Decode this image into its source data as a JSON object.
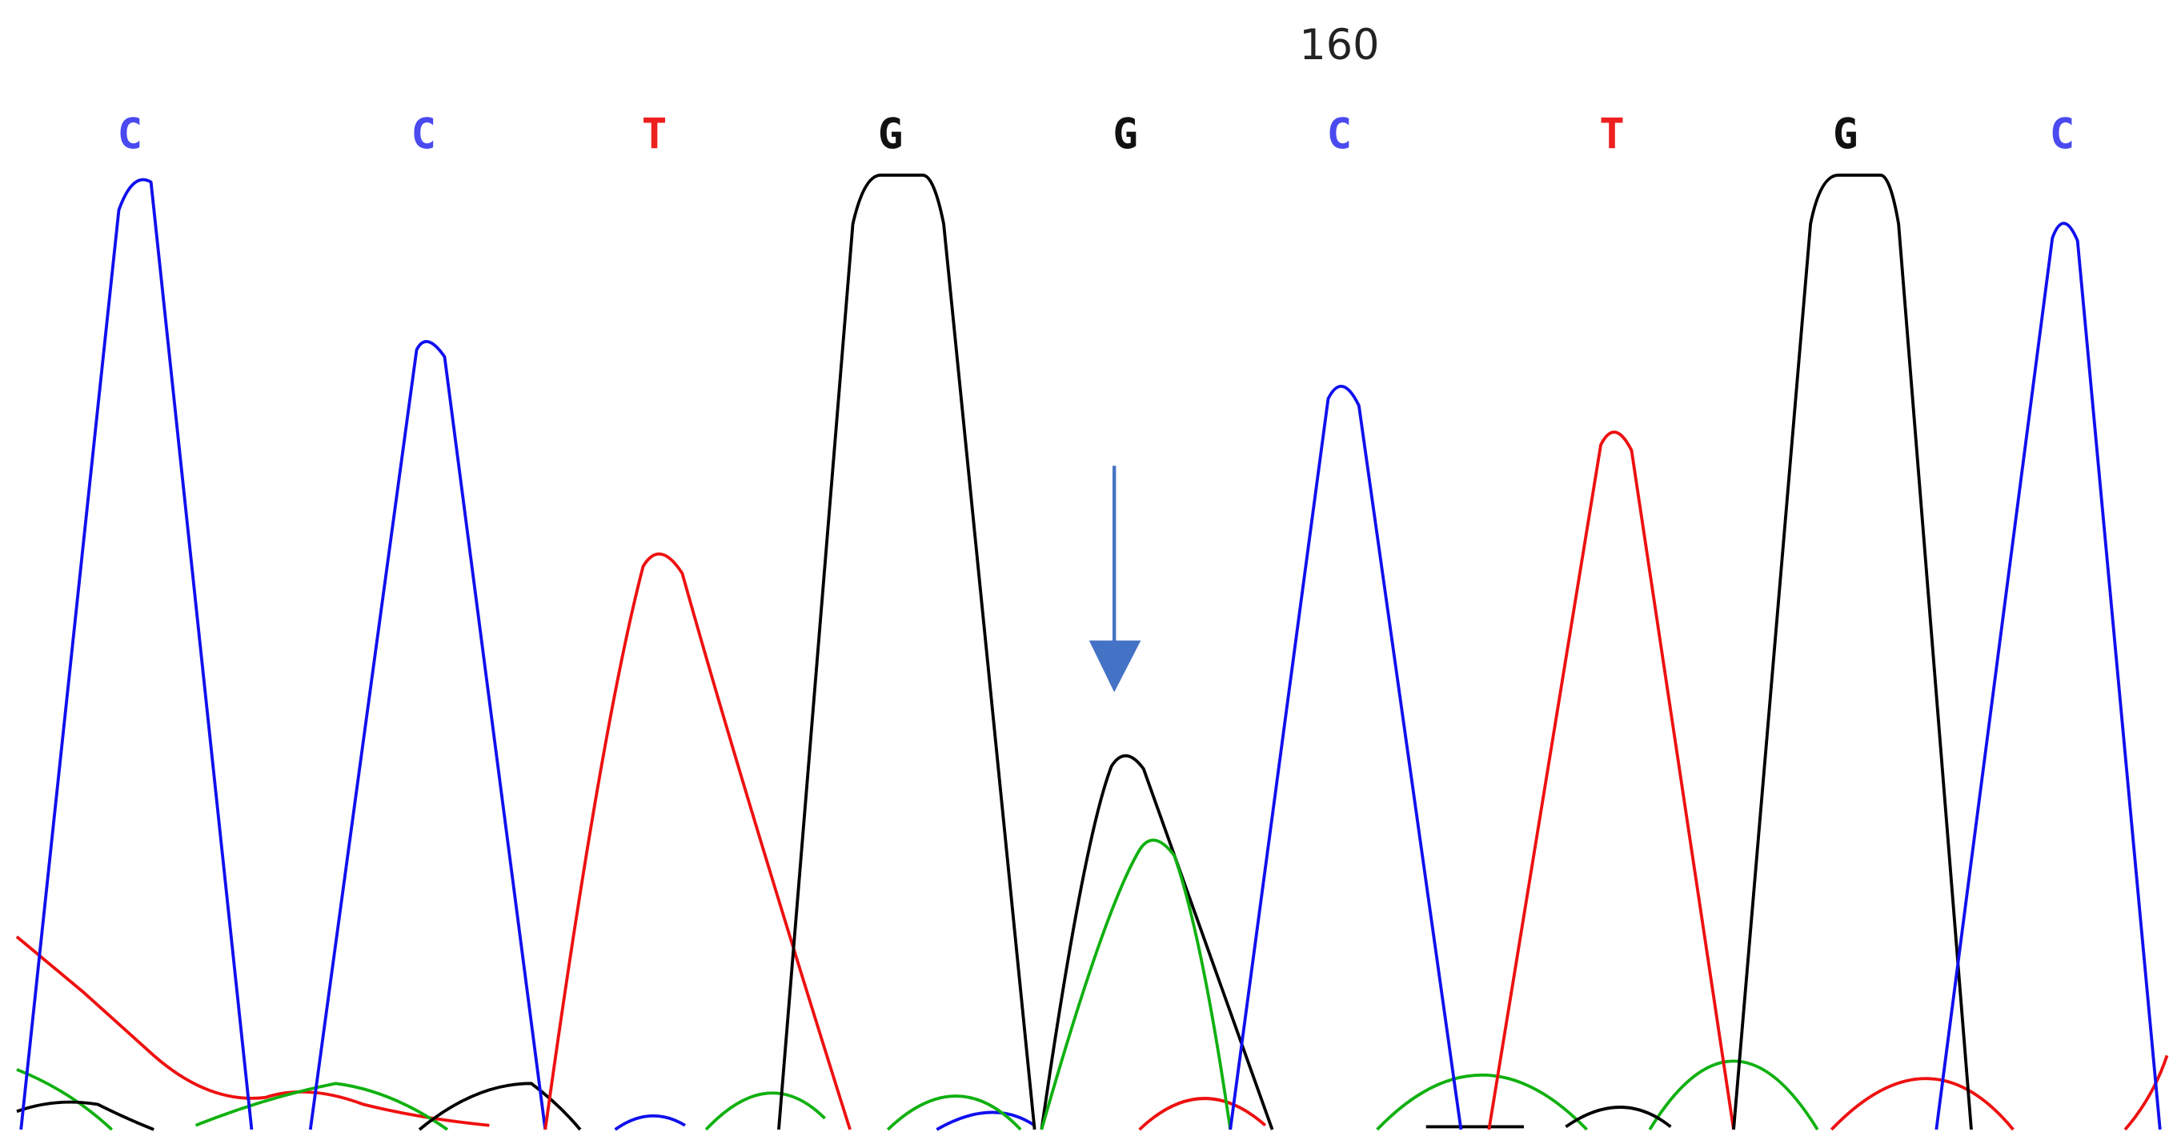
{
  "ruler": {
    "position_label": "160"
  },
  "bases": [
    "C",
    "C",
    "T",
    "G",
    "G",
    "C",
    "T",
    "G",
    "C"
  ]
}
